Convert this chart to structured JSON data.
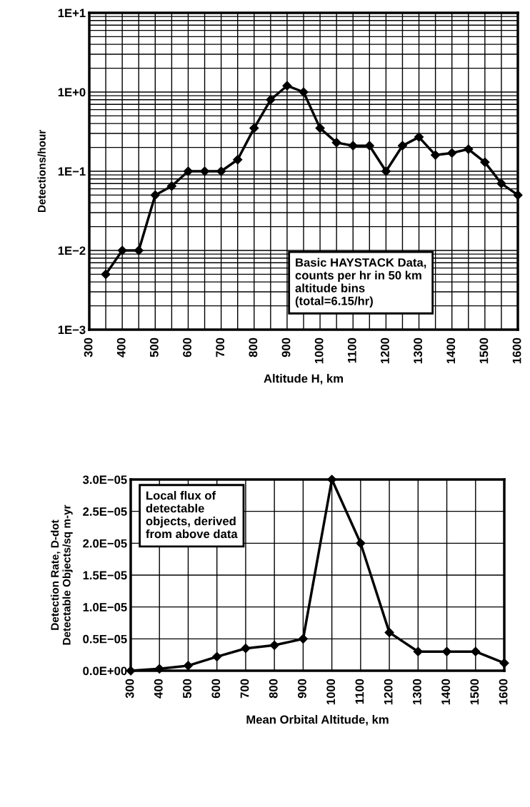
{
  "chart_data": [
    {
      "type": "line",
      "xlabel": "Altitude H, km",
      "ylabel": "Detections/hour",
      "log": "y",
      "marker": "diamond",
      "grid": true,
      "x": [
        350,
        400,
        450,
        500,
        550,
        600,
        650,
        700,
        750,
        800,
        850,
        900,
        950,
        1000,
        1050,
        1100,
        1150,
        1200,
        1250,
        1300,
        1350,
        1400,
        1450,
        1500,
        1550,
        1600
      ],
      "series": [
        {
          "color": "#000000",
          "values": [
            0.005,
            0.01,
            0.01,
            0.05,
            0.065,
            0.1,
            0.1,
            0.1,
            0.14,
            0.35,
            0.8,
            1.2,
            1.0,
            0.35,
            0.23,
            0.21,
            0.21,
            0.1,
            0.21,
            0.27,
            0.16,
            0.17,
            0.19,
            0.13,
            0.07,
            0.05
          ]
        }
      ],
      "xlim": [
        300,
        1600
      ],
      "xticks": [
        300,
        {
          "value": 350,
          "label": null
        },
        400,
        {
          "value": 450,
          "label": null
        },
        500,
        {
          "value": 550,
          "label": null
        },
        600,
        {
          "value": 650,
          "label": null
        },
        700,
        {
          "value": 750,
          "label": null
        },
        800,
        {
          "value": 850,
          "label": null
        },
        900,
        {
          "value": 950,
          "label": null
        },
        1000,
        {
          "value": 1050,
          "label": null
        },
        1100,
        {
          "value": 1150,
          "label": null
        },
        1200,
        {
          "value": 1250,
          "label": null
        },
        1300,
        {
          "value": 1350,
          "label": null
        },
        1400,
        {
          "value": 1450,
          "label": null
        },
        1500,
        {
          "value": 1550,
          "label": null
        },
        1600
      ],
      "ylim": [
        0.001,
        10
      ],
      "yticks": [
        {
          "value": 0.001,
          "label": "1E−3"
        },
        {
          "value": 0.002,
          "label": null
        },
        {
          "value": 0.003,
          "label": null
        },
        {
          "value": 0.004,
          "label": null
        },
        {
          "value": 0.005,
          "label": null
        },
        {
          "value": 0.006,
          "label": null
        },
        {
          "value": 0.007,
          "label": null
        },
        {
          "value": 0.008,
          "label": null
        },
        {
          "value": 0.009,
          "label": null
        },
        {
          "value": 0.01,
          "label": "1E−2"
        },
        {
          "value": 0.02,
          "label": null
        },
        {
          "value": 0.03,
          "label": null
        },
        {
          "value": 0.04,
          "label": null
        },
        {
          "value": 0.05,
          "label": null
        },
        {
          "value": 0.06,
          "label": null
        },
        {
          "value": 0.07,
          "label": null
        },
        {
          "value": 0.08,
          "label": null
        },
        {
          "value": 0.09,
          "label": null
        },
        {
          "value": 0.1,
          "label": "1E−1"
        },
        {
          "value": 0.2,
          "label": null
        },
        {
          "value": 0.3,
          "label": null
        },
        {
          "value": 0.4,
          "label": null
        },
        {
          "value": 0.5,
          "label": null
        },
        {
          "value": 0.6,
          "label": null
        },
        {
          "value": 0.7,
          "label": null
        },
        {
          "value": 0.8,
          "label": null
        },
        {
          "value": 0.9,
          "label": null
        },
        {
          "value": 1,
          "label": "1E+0"
        },
        {
          "value": 2,
          "label": null
        },
        {
          "value": 3,
          "label": null
        },
        {
          "value": 4,
          "label": null
        },
        {
          "value": 5,
          "label": null
        },
        {
          "value": 6,
          "label": null
        },
        {
          "value": 7,
          "label": null
        },
        {
          "value": 8,
          "label": null
        },
        {
          "value": 9,
          "label": null
        },
        {
          "value": 10,
          "label": "1E+1"
        }
      ],
      "annotations": [
        "Basic HAYSTACK Data,\ncounts per hr in 50 km\naltitude bins\n(total=6.15/hr)"
      ]
    },
    {
      "type": "line",
      "xlabel": "Mean Orbital Altitude, km",
      "ylabel": "Detection Rate, D-dot\nDetectable Objects/sq m-yr",
      "marker": "diamond",
      "grid": true,
      "x": [
        300,
        400,
        500,
        600,
        700,
        800,
        900,
        1000,
        1100,
        1200,
        1300,
        1400,
        1500,
        1600
      ],
      "series": [
        {
          "color": "#000000",
          "values": [
            0,
            3e-07,
            8e-07,
            2.2e-06,
            3.5e-06,
            4e-06,
            5e-06,
            3e-05,
            2e-05,
            6e-06,
            3e-06,
            3e-06,
            3e-06,
            1.2e-06
          ]
        }
      ],
      "xlim": [
        300,
        1600
      ],
      "xticks": [
        300,
        400,
        500,
        600,
        700,
        800,
        900,
        1000,
        1100,
        1200,
        1300,
        1400,
        1500,
        1600
      ],
      "ylim": [
        0,
        3e-05
      ],
      "yticks": [
        {
          "value": 0,
          "label": "0.0E+00"
        },
        {
          "value": 5e-06,
          "label": "0.5E−05"
        },
        {
          "value": 1e-05,
          "label": "1.0E−05"
        },
        {
          "value": 1.5e-05,
          "label": "1.5E−05"
        },
        {
          "value": 2e-05,
          "label": "2.0E−05"
        },
        {
          "value": 2.5e-05,
          "label": "2.5E−05"
        },
        {
          "value": 3e-05,
          "label": "3.0E−05"
        }
      ],
      "annotations": [
        "Local flux of\ndetectable\nobjects, derived\nfrom above data"
      ]
    }
  ]
}
